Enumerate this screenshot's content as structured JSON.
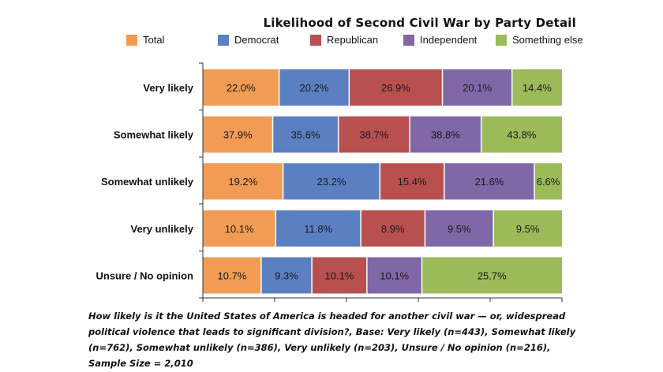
{
  "chart_data": {
    "type": "bar",
    "orientation": "horizontal",
    "stacked": true,
    "normalized": true,
    "title": "Likelihood of Second Civil War by Party Detail",
    "categories": [
      "Very likely",
      "Somewhat likely",
      "Somewhat unlikely",
      "Very unlikely",
      "Unsure / No opinion"
    ],
    "series": [
      {
        "name": "Total",
        "color": "#f19b55",
        "values": [
          22.0,
          37.9,
          19.2,
          10.1,
          10.7
        ],
        "labels": [
          "22.0%",
          "37.9%",
          "19.2%",
          "10.1%",
          "10.7%"
        ]
      },
      {
        "name": "Democrat",
        "color": "#5b80c2",
        "values": [
          20.2,
          35.6,
          23.2,
          11.8,
          9.3
        ],
        "labels": [
          "20.2%",
          "35.6%",
          "23.2%",
          "11.8%",
          "9.3%"
        ]
      },
      {
        "name": "Republican",
        "color": "#b95050",
        "values": [
          26.9,
          38.7,
          15.4,
          8.9,
          10.1
        ],
        "labels": [
          "26.9%",
          "38.7%",
          "15.4%",
          "8.9%",
          "10.1%"
        ]
      },
      {
        "name": "Independent",
        "color": "#8067a6",
        "values": [
          20.1,
          38.8,
          21.6,
          9.5,
          10.1
        ],
        "labels": [
          "20.1%",
          "38.8%",
          "21.6%",
          "9.5%",
          "10.1%"
        ]
      },
      {
        "name": "Something else",
        "color": "#9bbb59",
        "values": [
          14.4,
          43.8,
          6.6,
          9.5,
          25.7
        ],
        "labels": [
          "14.4%",
          "43.8%",
          "6.6%",
          "9.5%",
          "25.7%"
        ]
      }
    ],
    "xlabel": "",
    "ylabel": "",
    "legend_position": "top",
    "grid": false
  },
  "footnote": "How likely is it the United States of America is headed for another civil war — or, widespread political violence that leads to significant division?, Base: Very likely (n=443), Somewhat likely (n=762), Somewhat unlikely (n=386), Very unlikely (n=203), Unsure / No opinion (n=216), Sample Size = 2,010"
}
